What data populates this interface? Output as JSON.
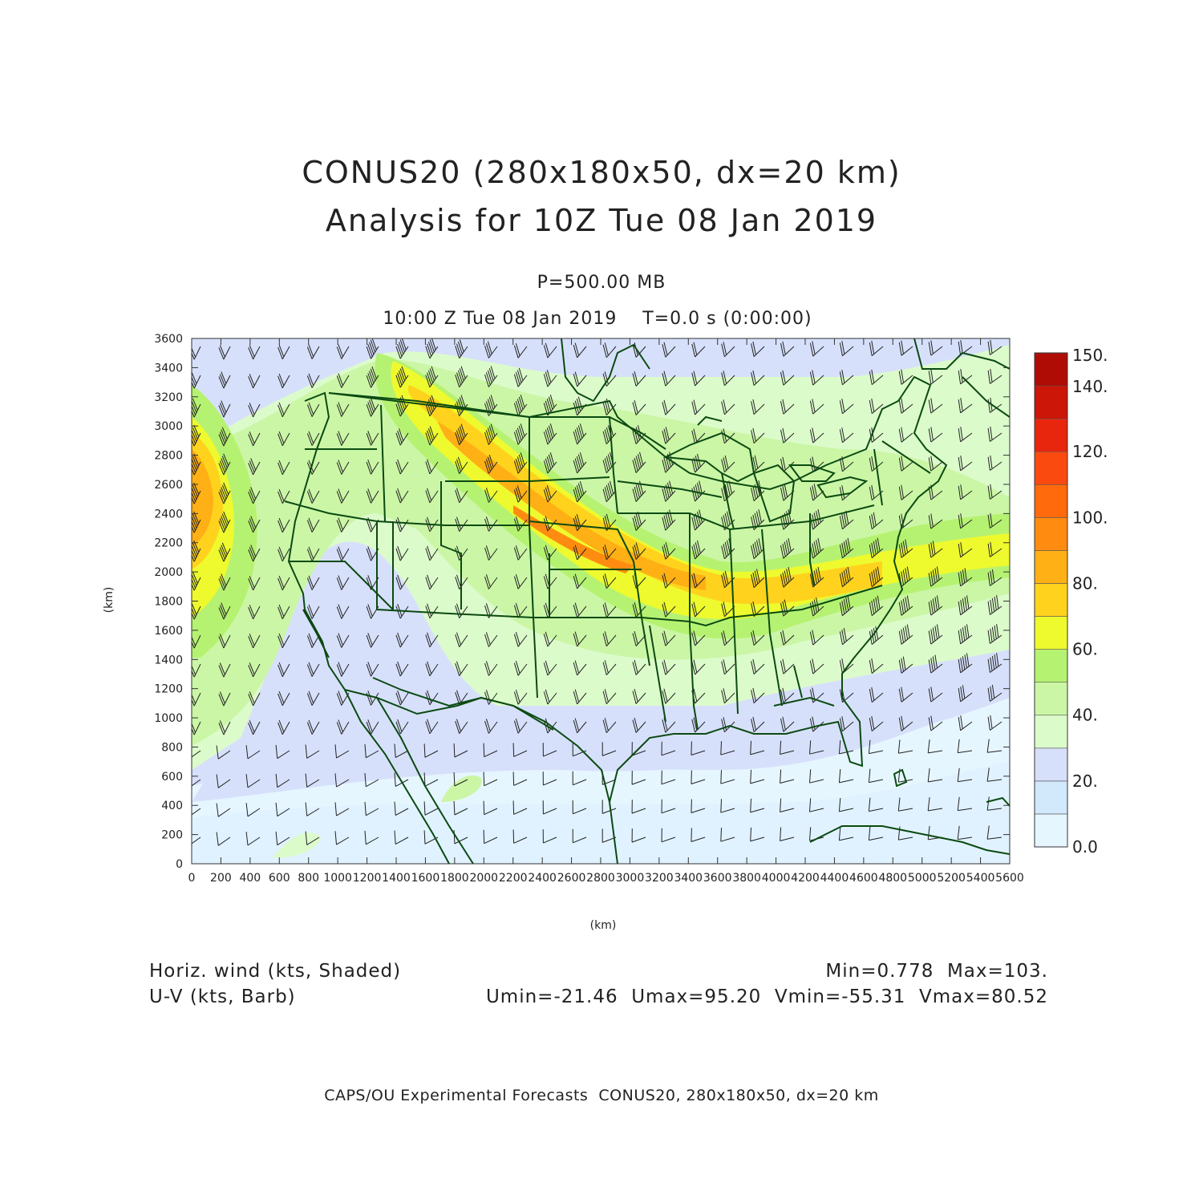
{
  "header": {
    "title_line1": "CONUS20 (280x180x50, dx=20 km)",
    "title_line2": "Analysis for 10Z Tue 08 Jan 2019",
    "level": "P=500.00 MB",
    "valid_time": "10:00 Z Tue 08 Jan 2019    T=0.0 s (0:00:00)"
  },
  "axes": {
    "x_label": "(km)",
    "y_label": "(km)",
    "x_ticks": [
      0,
      200,
      400,
      600,
      800,
      1000,
      1200,
      1400,
      1600,
      1800,
      2000,
      2200,
      2400,
      2600,
      2800,
      3000,
      3200,
      3400,
      3600,
      3800,
      4000,
      4200,
      4400,
      4600,
      4800,
      5000,
      5200,
      5400,
      5600
    ],
    "y_ticks": [
      0,
      200,
      400,
      600,
      800,
      1000,
      1200,
      1400,
      1600,
      1800,
      2000,
      2200,
      2400,
      2600,
      2800,
      3000,
      3200,
      3400,
      3600
    ],
    "x_range": [
      0,
      5600
    ],
    "y_range": [
      0,
      3600
    ]
  },
  "colorbar": {
    "labels": [
      "0.0",
      "20.",
      "40.",
      "60.",
      "80.",
      "100.",
      "120.",
      "140.",
      "150."
    ],
    "levels": [
      0,
      10,
      20,
      30,
      40,
      50,
      60,
      70,
      80,
      90,
      100,
      110,
      120,
      130,
      140,
      150
    ],
    "colors": [
      "#e6f6ff",
      "#d2e8fb",
      "#d7e0fb",
      "#dcfbcb",
      "#cbf6a6",
      "#b6f271",
      "#eefa2e",
      "#ffd31d",
      "#ffb015",
      "#ff8c10",
      "#ff6a0c",
      "#fa4a10",
      "#e8260e",
      "#cc1608",
      "#b00c06"
    ]
  },
  "footer": {
    "left_line1": "Horiz. wind (kts, Shaded)",
    "left_line2": "U-V (kts, Barb)",
    "right_line1": "Min=0.778  Max=103.",
    "right_line2": "Umin=-21.46  Umax=95.20  Vmin=-55.31  Vmax=80.52",
    "credit": "CAPS/OU Experimental Forecasts  CONUS20, 280x180x50, dx=20 km"
  },
  "map_colors": {
    "border": "#0b4a12",
    "axis": "#333333"
  }
}
